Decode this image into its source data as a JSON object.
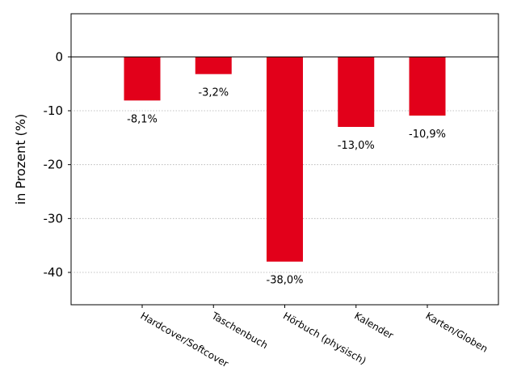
{
  "chart_data": {
    "type": "bar",
    "title": "",
    "xlabel": "",
    "ylabel": "in Prozent (%)",
    "ylim": [
      -46,
      8
    ],
    "yticks": [
      0,
      -10,
      -20,
      -30,
      -40
    ],
    "categories": [
      "Hardcover/Softcover",
      "Taschenbuch",
      "Hörbuch (physisch)",
      "Kalender",
      "Karten/Globen"
    ],
    "values": [
      -8.1,
      -3.2,
      -38.0,
      -13.0,
      -10.9
    ],
    "data_labels": [
      "-8,1%",
      "-3,2%",
      "-38,0%",
      "-13,0%",
      "-10,9%"
    ],
    "bar_color": "#e2001a",
    "grid": "horizontal-dotted",
    "zero_line": true,
    "tick_label_rotation": "diagonal"
  }
}
